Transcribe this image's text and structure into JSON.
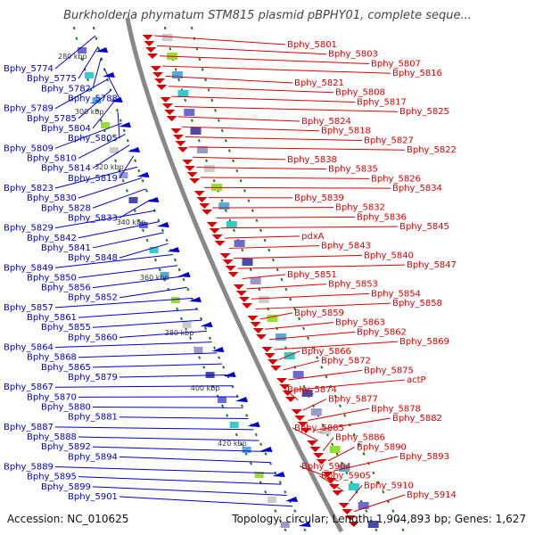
{
  "title": "Burkholderia phymatum STM815 plasmid pBPHY01, complete seque...",
  "accession": "Accession: NC_010625",
  "summary": "Topology: circular; Length: 1,904,893 bp; Genes: 1,627",
  "ticks": [
    "280 kbp",
    "300 kbp",
    "320 kbp",
    "340 kbp",
    "360 kbp",
    "380 kbp",
    "400 kbp",
    "420 kbp"
  ],
  "left_labels": [
    "Bphy_5774",
    "Bphy_5775",
    "Bphy_5782",
    "Bphy_5788",
    "Bphy_5789",
    "Bphy_5785",
    "Bphy_5804",
    "Bphy_5805",
    "Bphy_5809",
    "Bphy_5810",
    "Bphy_5814",
    "Bphy_5819",
    "Bphy_5823",
    "Bphy_5830",
    "Bphy_5828",
    "Bphy_5833",
    "Bphy_5829",
    "Bphy_5842",
    "Bphy_5841",
    "Bphy_5848",
    "Bphy_5849",
    "Bphy_5850",
    "Bphy_5856",
    "Bphy_5852",
    "Bphy_5857",
    "Bphy_5861",
    "Bphy_5855",
    "Bphy_5860",
    "Bphy_5864",
    "Bphy_5868",
    "Bphy_5865",
    "Bphy_5879",
    "Bphy_5867",
    "Bphy_5870",
    "Bphy_5880",
    "Bphy_5881",
    "Bphy_5887",
    "Bphy_5888",
    "Bphy_5892",
    "Bphy_5894",
    "Bphy_5889",
    "Bphy_5895",
    "Bphy_5899",
    "Bphy_5901"
  ],
  "right_labels": [
    "Bphy_5801",
    "Bphy_5803",
    "Bphy_5807",
    "Bphy_5816",
    "Bphy_5821",
    "Bphy_5808",
    "Bphy_5817",
    "Bphy_5825",
    "Bphy_5824",
    "Bphy_5818",
    "Bphy_5827",
    "Bphy_5822",
    "Bphy_5838",
    "Bphy_5835",
    "Bphy_5826",
    "Bphy_5834",
    "Bphy_5839",
    "Bphy_5832",
    "Bphy_5836",
    "Bphy_5845",
    "pdxA",
    "Bphy_5843",
    "Bphy_5840",
    "Bphy_5847",
    "Bphy_5851",
    "Bphy_5853",
    "Bphy_5854",
    "Bphy_5858",
    "Bphy_5859",
    "Bphy_5863",
    "Bphy_5862",
    "Bphy_5869",
    "Bphy_5866",
    "Bphy_5872",
    "Bphy_5875",
    "actP",
    "Bphy_5874",
    "Bphy_5877",
    "Bphy_5878",
    "Bphy_5882",
    "Bphy_5885",
    "Bphy_5886",
    "Bphy_5890",
    "Bphy_5893",
    "Bphy_5904",
    "Bphy_5905",
    "Bphy_5910",
    "Bphy_5914"
  ],
  "colors": {
    "forward": "#0000cc",
    "reverse": "#dd0000",
    "backbone": "#888888",
    "gc_skew": "#1a7a1a"
  }
}
